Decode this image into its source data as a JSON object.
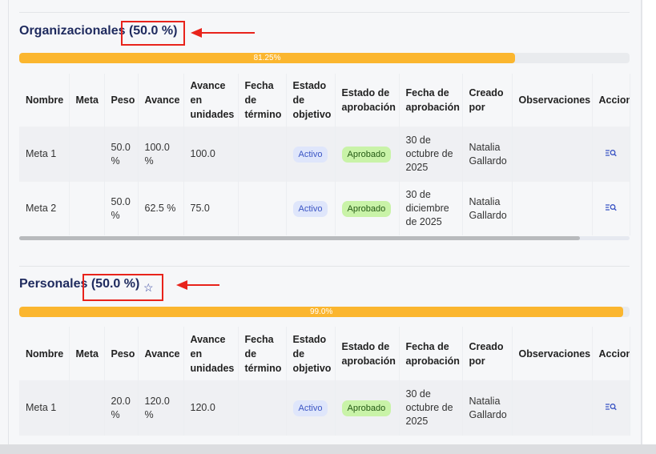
{
  "sections": [
    {
      "name": "Organizacionales",
      "weight": "(50.0 %)",
      "progress_label": "81.25%",
      "progress": 81.25,
      "headers": [
        "Nombre",
        "Meta",
        "Peso",
        "Avance",
        "Avance en unidades",
        "Fecha de término",
        "Estado de objetivo",
        "Estado de aprobación",
        "Fecha de aprobación",
        "Creado por",
        "Observaciones",
        "Accion"
      ],
      "rows": [
        {
          "nombre": "Meta 1",
          "meta": "",
          "peso": "50.0 %",
          "avance": "100.0 %",
          "unidades": "100.0",
          "fecha_termino": "",
          "estado": "Activo",
          "aprobacion": "Aprobado",
          "fecha_aprobacion": "30 de octubre de 2025",
          "creado": "Natalia Gallardo",
          "observaciones": ""
        },
        {
          "nombre": "Meta 2",
          "meta": "",
          "peso": "50.0 %",
          "avance": "62.5 %",
          "unidades": "75.0",
          "fecha_termino": "",
          "estado": "Activo",
          "aprobacion": "Aprobado",
          "fecha_aprobacion": "30 de diciembre de 2025",
          "creado": "Natalia Gallardo",
          "observaciones": ""
        }
      ]
    },
    {
      "name": "Personales",
      "weight": "(50.0 %)",
      "progress_label": "99.0%",
      "progress": 99.0,
      "headers": [
        "Nombre",
        "Meta",
        "Peso",
        "Avance",
        "Avance en unidades",
        "Fecha de término",
        "Estado de objetivo",
        "Estado de aprobación",
        "Fecha de aprobación",
        "Creado por",
        "Observaciones",
        "Accion"
      ],
      "rows": [
        {
          "nombre": "Meta 1",
          "meta": "",
          "peso": "20.0 %",
          "avance": "120.0 %",
          "unidades": "120.0",
          "fecha_termino": "",
          "estado": "Activo",
          "aprobacion": "Aprobado",
          "fecha_aprobacion": "30 de octubre de 2025",
          "creado": "Natalia Gallardo",
          "observaciones": ""
        }
      ]
    }
  ],
  "icons": {
    "view": "list-search-icon",
    "favorite": "star-outline-icon"
  },
  "colors": {
    "progress": "#fbb62f",
    "title": "#1e2a5e",
    "annotation": "#e8231b"
  }
}
